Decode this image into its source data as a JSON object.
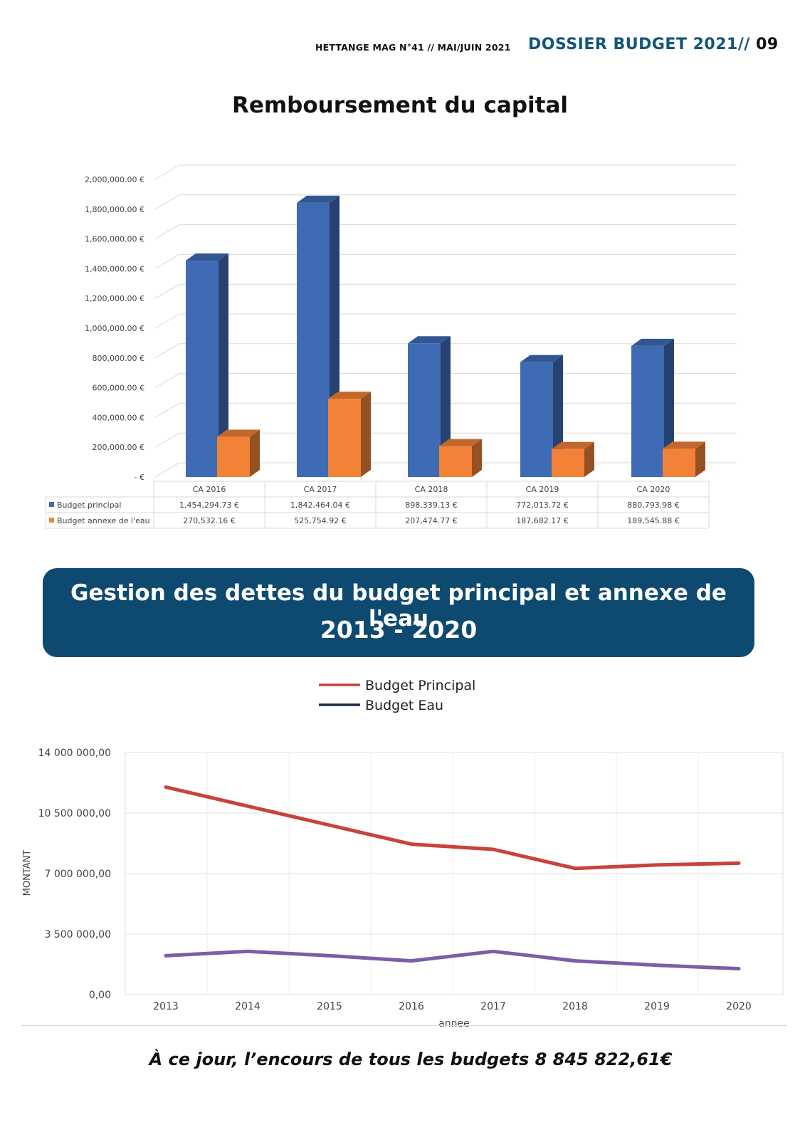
{
  "header": {
    "magazine": "HETTANGE MAG N°41 // MAI/JUIN 2021",
    "section": "DOSSIER BUDGET 2021//",
    "page_number": "09"
  },
  "banner": {
    "line1": "Gestion des dettes du budget principal et annexe de l'eau",
    "line2": "2013 - 2020"
  },
  "footer": {
    "note": "À ce jour, l’encours de tous les budgets 8 845 822,61€"
  },
  "chart_data": [
    {
      "type": "bar",
      "title": "Remboursement du capital",
      "categories": [
        "CA 2016",
        "CA 2017",
        "CA 2018",
        "CA 2019",
        "CA 2020"
      ],
      "series": [
        {
          "name": "Budget principal",
          "color": "#3f6bb5",
          "values": [
            1454294.73,
            1842464.04,
            898339.13,
            772013.72,
            880793.98
          ],
          "labels": [
            "1,454,294.73 €",
            "1,842,464.04 €",
            "898,339.13 €",
            "772,013.72 €",
            "880,793.98 €"
          ]
        },
        {
          "name": "Budget annexe de l'eau",
          "color": "#f28238",
          "values": [
            270532.16,
            525754.92,
            207474.77,
            187682.17,
            189545.88
          ],
          "labels": [
            "270,532.16 €",
            "525,754.92 €",
            "207,474.77 €",
            "187,682.17 €",
            "189,545.88 €"
          ]
        }
      ],
      "ylim": [
        0,
        2000000
      ],
      "yticks": [
        0,
        200000,
        400000,
        600000,
        800000,
        1000000,
        1200000,
        1400000,
        1600000,
        1800000,
        2000000
      ],
      "ytick_labels": [
        "- €",
        "200,000.00 €",
        "400,000.00 €",
        "600,000.00 €",
        "800,000.00 €",
        "1,000,000.00 €",
        "1,200,000.00 €",
        "1,400,000.00 €",
        "1,600,000.00 €",
        "1,800,000.00 €",
        "2,000,000.00 €"
      ],
      "grid": true,
      "legend": "data-table-left"
    },
    {
      "type": "line",
      "title": "",
      "x": [
        "2013",
        "2014",
        "2015",
        "2016",
        "2017",
        "2018",
        "2019",
        "2020"
      ],
      "series": [
        {
          "name": "Budget Principal",
          "color": "#c9423d",
          "values": [
            12000000,
            10900000,
            9800000,
            8700000,
            8400000,
            7300000,
            7500000,
            7600000
          ]
        },
        {
          "name": "Budget Eau",
          "color": "#7b5ea7",
          "values": [
            2250000,
            2500000,
            2250000,
            1950000,
            2500000,
            1950000,
            1700000,
            1500000
          ]
        }
      ],
      "legend_colors": [
        "#c9423d",
        "#1f2a4d"
      ],
      "xlabel": "annee",
      "ylabel": "MONTANT",
      "ylim": [
        0,
        14000000
      ],
      "yticks": [
        0,
        3500000,
        7000000,
        10500000,
        14000000
      ],
      "ytick_labels": [
        "0,00",
        "3 500 000,00",
        "7 000 000,00",
        "10 500 000,00",
        "14 000 000,00"
      ],
      "grid": true,
      "legend": "top-center"
    }
  ]
}
